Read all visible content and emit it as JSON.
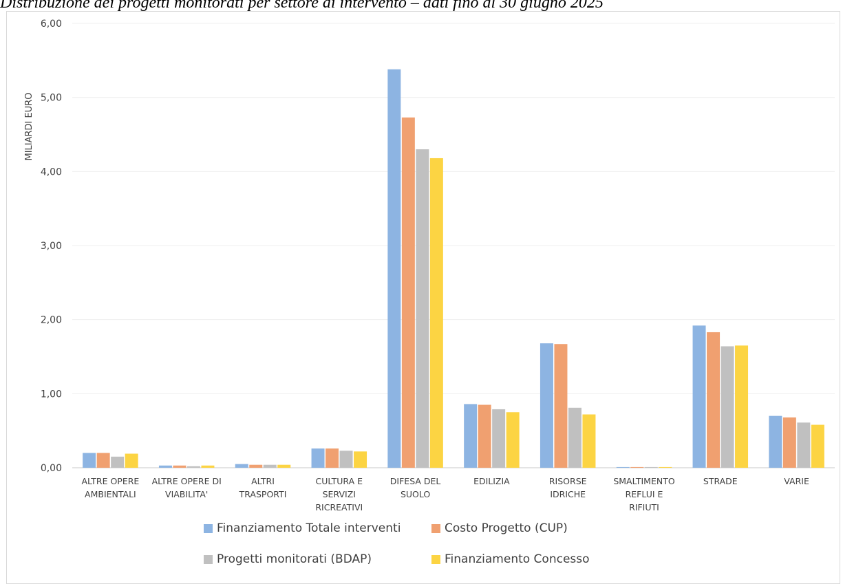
{
  "title": "Distribuzione dei progetti monitorati per settore di intervento – dati fino al 30 giugno 2025",
  "chart_data": {
    "type": "bar",
    "title": "Distribuzione dei progetti monitorati per settore di intervento – dati fino al 30 giugno 2025",
    "ylabel": "MILIARDI EURO",
    "xlabel": "",
    "ylim": [
      0,
      6
    ],
    "yticks": [
      "0,00",
      "1,00",
      "2,00",
      "3,00",
      "4,00",
      "5,00",
      "6,00"
    ],
    "grid": true,
    "legend_position": "bottom",
    "categories": [
      [
        "ALTRE OPERE",
        "AMBIENTALI"
      ],
      [
        "ALTRE OPERE DI",
        "VIABILITA'"
      ],
      [
        "ALTRI",
        "TRASPORTI"
      ],
      [
        "CULTURA E",
        "SERVIZI",
        "RICREATIVI"
      ],
      [
        "DIFESA DEL",
        "SUOLO"
      ],
      [
        "EDILIZIA"
      ],
      [
        "RISORSE",
        "IDRICHE"
      ],
      [
        "SMALTIMENTO",
        "REFLUI E",
        "RIFIUTI"
      ],
      [
        "STRADE"
      ],
      [
        "VARIE"
      ]
    ],
    "series": [
      {
        "name": "Finanziamento Totale interventi",
        "color": "#8db4e2",
        "values": [
          0.2,
          0.03,
          0.05,
          0.26,
          5.38,
          0.86,
          1.68,
          0.01,
          1.92,
          0.7
        ]
      },
      {
        "name": "Costo Progetto (CUP)",
        "color": "#f0a070",
        "values": [
          0.2,
          0.03,
          0.04,
          0.26,
          4.73,
          0.85,
          1.67,
          0.01,
          1.83,
          0.68
        ]
      },
      {
        "name": "Progetti monitorati (BDAP)",
        "color": "#c0c0c0",
        "values": [
          0.15,
          0.02,
          0.04,
          0.23,
          4.3,
          0.79,
          0.81,
          0.01,
          1.64,
          0.61
        ]
      },
      {
        "name": "Finanziamento Concesso",
        "color": "#fcd443",
        "values": [
          0.19,
          0.03,
          0.04,
          0.22,
          4.18,
          0.75,
          0.72,
          0.01,
          1.65,
          0.58
        ]
      }
    ]
  }
}
